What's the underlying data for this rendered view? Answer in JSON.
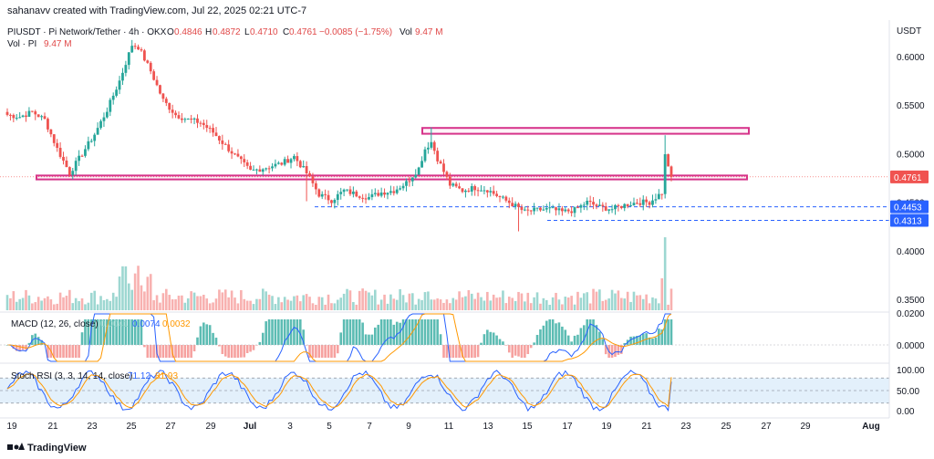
{
  "credit": "sahanavv created with TradingView.com, Jul 22, 2025 02:21 UTC-7",
  "symbol": {
    "title": "PIUSDT · Pi Network/Tether · 4h · OKX",
    "open_label": "O",
    "open": "0.4846",
    "high_label": "H",
    "high": "0.4872",
    "low_label": "L",
    "low": "0.4710",
    "close_label": "C",
    "close": "0.4761",
    "change": "−0.0085 (−1.75%)",
    "vol_label": "Vol",
    "vol": "9.47 M",
    "vol_pi_label": "Vol · PI",
    "vol_pi": "9.47 M"
  },
  "currency": "USDT",
  "price_axis": [
    "0.6000",
    "0.5500",
    "0.5000",
    "0.4500",
    "0.4000",
    "0.3500"
  ],
  "price_tags": [
    {
      "value": "0.4761",
      "price": 0.4761,
      "color": "#f05350"
    },
    {
      "value": "0.4453",
      "price": 0.4453,
      "color": "#2962ff"
    },
    {
      "value": "0.4313",
      "price": 0.4313,
      "color": "#2962ff"
    }
  ],
  "macd": {
    "title": "MACD (12, 26, close)",
    "hist": "0.0041",
    "macd": "0.0074",
    "signal": "0.0032",
    "axis": [
      "0.0200",
      "0.0000"
    ]
  },
  "stoch": {
    "title": "Stoch RSI (3, 3, 14, 14, close)",
    "k": "71.12",
    "d": "81.93",
    "axis": [
      "100.00",
      "50.00",
      "0.00"
    ]
  },
  "x_labels": [
    {
      "label": "19",
      "bold": false
    },
    {
      "label": "21",
      "bold": false
    },
    {
      "label": "23",
      "bold": false
    },
    {
      "label": "25",
      "bold": false
    },
    {
      "label": "27",
      "bold": false
    },
    {
      "label": "29",
      "bold": false
    },
    {
      "label": "Jul",
      "bold": true
    },
    {
      "label": "3",
      "bold": false
    },
    {
      "label": "5",
      "bold": false
    },
    {
      "label": "7",
      "bold": false
    },
    {
      "label": "9",
      "bold": false
    },
    {
      "label": "11",
      "bold": false
    },
    {
      "label": "13",
      "bold": false
    },
    {
      "label": "15",
      "bold": false
    },
    {
      "label": "17",
      "bold": false
    },
    {
      "label": "19",
      "bold": false
    },
    {
      "label": "21",
      "bold": false
    },
    {
      "label": "23",
      "bold": false
    },
    {
      "label": "25",
      "bold": false
    },
    {
      "label": "27",
      "bold": false
    },
    {
      "label": "29",
      "bold": false
    },
    {
      "label": "Aug",
      "bold": true
    }
  ],
  "logo": "TradingView",
  "colors": {
    "up": "#26a69a",
    "down": "#ef5350",
    "zone": "#d6338a",
    "dashed": "#2962ff",
    "macd_line": "#2962ff",
    "signal_line": "#ff9800",
    "stoch_band": "#e3f0fb"
  },
  "chart_data": {
    "type": "candlestick",
    "symbol": "PIUSDT",
    "interval": "4h",
    "exchange": "OKX",
    "y_range": [
      0.335,
      0.64
    ],
    "resistance_zone": [
      0.5205,
      0.5265
    ],
    "support_zone": [
      0.4735,
      0.4775
    ],
    "dashed_levels": [
      0.4453,
      0.4313
    ],
    "price_keypoints": [
      [
        0,
        0.54
      ],
      [
        4,
        0.538
      ],
      [
        8,
        0.543
      ],
      [
        12,
        0.535
      ],
      [
        16,
        0.505
      ],
      [
        20,
        0.48
      ],
      [
        24,
        0.5
      ],
      [
        28,
        0.52
      ],
      [
        32,
        0.545
      ],
      [
        36,
        0.575
      ],
      [
        40,
        0.612
      ],
      [
        42,
        0.61
      ],
      [
        46,
        0.585
      ],
      [
        50,
        0.555
      ],
      [
        54,
        0.54
      ],
      [
        58,
        0.535
      ],
      [
        62,
        0.532
      ],
      [
        66,
        0.522
      ],
      [
        70,
        0.508
      ],
      [
        74,
        0.495
      ],
      [
        78,
        0.482
      ],
      [
        82,
        0.485
      ],
      [
        88,
        0.49
      ],
      [
        92,
        0.497
      ],
      [
        96,
        0.48
      ],
      [
        100,
        0.458
      ],
      [
        104,
        0.452
      ],
      [
        108,
        0.462
      ],
      [
        112,
        0.458
      ],
      [
        116,
        0.455
      ],
      [
        120,
        0.46
      ],
      [
        124,
        0.462
      ],
      [
        128,
        0.47
      ],
      [
        132,
        0.485
      ],
      [
        134,
        0.505
      ],
      [
        136,
        0.512
      ],
      [
        138,
        0.495
      ],
      [
        142,
        0.468
      ],
      [
        146,
        0.462
      ],
      [
        150,
        0.465
      ],
      [
        154,
        0.463
      ],
      [
        158,
        0.455
      ],
      [
        162,
        0.448
      ],
      [
        166,
        0.44
      ],
      [
        170,
        0.442
      ],
      [
        174,
        0.443
      ],
      [
        178,
        0.44
      ],
      [
        182,
        0.442
      ],
      [
        186,
        0.45
      ],
      [
        190,
        0.445
      ],
      [
        194,
        0.443
      ],
      [
        198,
        0.447
      ],
      [
        202,
        0.45
      ],
      [
        206,
        0.45
      ],
      [
        210,
        0.46
      ],
      [
        211,
        0.498
      ],
      [
        212,
        0.488
      ],
      [
        213,
        0.476
      ]
    ],
    "volume_relative_spike_index": 211
  }
}
